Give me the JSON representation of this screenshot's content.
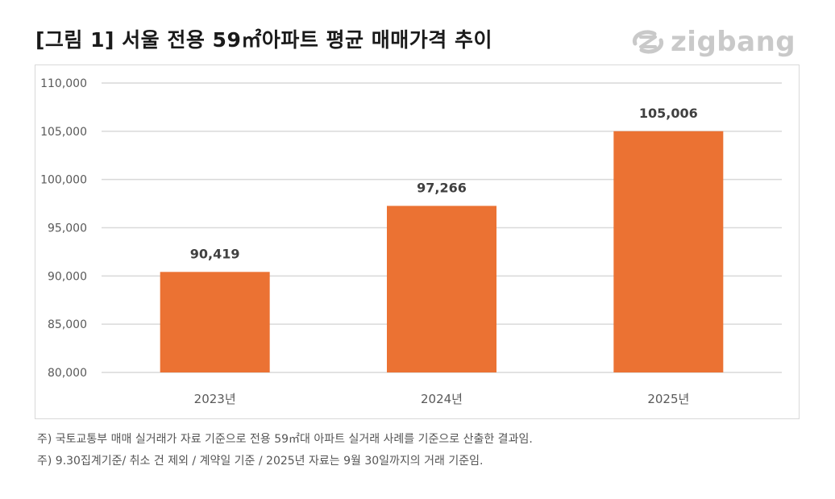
{
  "header": {
    "title": "[그림 1] 서울 전용 59㎡아파트 평균 매매가격 추이",
    "logo_text": "zigbang"
  },
  "colors": {
    "bar": "#EB7233",
    "grid": "#D9D9D9",
    "axis_text": "#595959",
    "label_text": "#404040",
    "logo": "#C9C9C9"
  },
  "chart_data": {
    "type": "bar",
    "categories": [
      "2023년",
      "2024년",
      "2025년"
    ],
    "values": [
      90419,
      97266,
      105006
    ],
    "data_labels": [
      "90,419",
      "97,266",
      "105,006"
    ],
    "ylim": [
      80000,
      110000
    ],
    "y_ticks": [
      80000,
      85000,
      90000,
      95000,
      100000,
      105000,
      110000
    ],
    "y_tick_labels": [
      "80,000",
      "85,000",
      "90,000",
      "95,000",
      "100,000",
      "105,000",
      "110,000"
    ],
    "grid": true
  },
  "notes": [
    "주) 국토교통부 매매 실거래가 자료 기준으로 전용 59㎡대 아파트 실거래 사례를 기준으로 산출한 결과임.",
    "주) 9.30집계기준/ 취소 건 제외 / 계약일 기준 / 2025년 자료는 9월 30일까지의 거래 기준임."
  ]
}
